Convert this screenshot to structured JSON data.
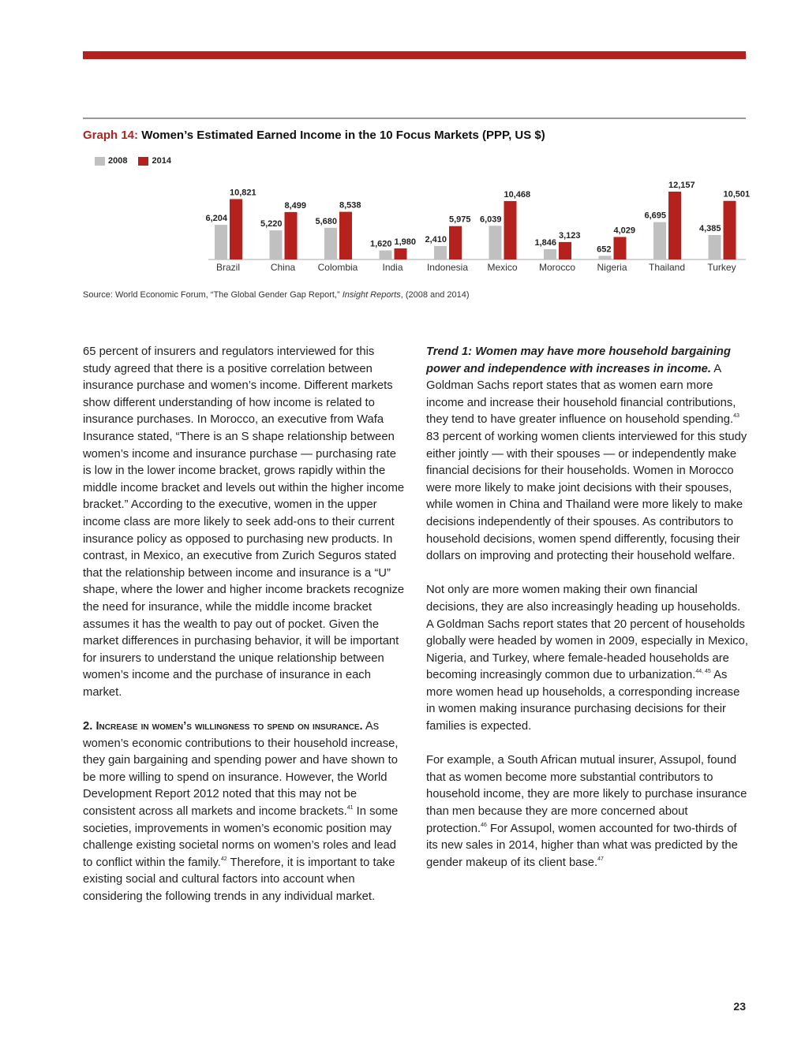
{
  "chart_data": {
    "type": "bar",
    "title_label": "Graph 14:",
    "title": "Women’s Estimated Earned Income in the 10 Focus Markets (PPP, US $)",
    "categories": [
      "Brazil",
      "China",
      "Colombia",
      "India",
      "Indonesia",
      "Mexico",
      "Morocco",
      "Nigeria",
      "Thailand",
      "Turkey"
    ],
    "series": [
      {
        "name": "2008",
        "color": "#c0c0c0",
        "values": [
          6204,
          5220,
          5680,
          1620,
          2410,
          6039,
          1846,
          652,
          6695,
          4385
        ],
        "labels": [
          "6,204",
          "5,220",
          "5,680",
          "1,620",
          "2,410",
          "6,039",
          "1,846",
          "652",
          "6,695",
          "4,385"
        ]
      },
      {
        "name": "2014",
        "color": "#b5211d",
        "values": [
          10821,
          8499,
          8538,
          1980,
          5975,
          10468,
          3123,
          4029,
          12157,
          10501
        ],
        "labels": [
          "10,821",
          "8,499",
          "8,538",
          "1,980",
          "5,975",
          "10,468",
          "3,123",
          "4,029",
          "12,157",
          "10,501"
        ]
      }
    ],
    "ylim": [
      0,
      12157
    ],
    "grid": false,
    "legend": "top-left"
  },
  "source": {
    "prefix": "Source: World Economic Forum, “The Global Gender Gap Report,” ",
    "italic": "Insight Reports",
    "suffix": ", (2008 and 2014)"
  },
  "left_column": {
    "p1": "65 percent of insurers and regulators interviewed for this study agreed that there is a positive correlation between insurance purchase and women’s income. Different markets show different understanding of how income is related to insurance purchases. In Morocco, an executive from Wafa Insurance stated, “There is an S shape relationship between women’s income and insurance purchase — purchasing rate is low in the lower income bracket, grows rapidly within the middle income bracket and levels out within the higher income bracket.” According to the executive, women in the upper income class are more likely to seek add-ons to their current insurance policy as opposed to purchasing new products. In contrast, in Mexico, an executive from Zurich Seguros stated that the relationship between income and insurance is a “U” shape, where the lower and higher income brackets recognize the need for insurance, while the middle income bracket assumes it has the wealth to pay out of pocket. Given the market differences in purchasing behavior, it will be important for insurers to understand the unique relationship between women’s income and the purchase of insurance in each market.",
    "p2_heading": "2. Increase in women’s willingness to spend on insurance.",
    "p2_a": " As women’s economic contributions to their household increase, they gain bargaining and spending power and have shown to be more willing to spend on insurance. However, the World Development Report 2012 noted that this may not be consistent across all markets and income brackets.",
    "p2_sup1": "41",
    "p2_b": " In some societies, improvements in women’s economic position may challenge existing societal norms on women’s roles and lead to conflict within the family.",
    "p2_sup2": "42",
    "p2_c": " Therefore, it is important to take existing social and cultural factors into account when considering the following trends in any individual market."
  },
  "right_column": {
    "p1_heading": "Trend 1: Women may have more household bargaining power and independence with increases in income.",
    "p1_a": " A Goldman Sachs report states that as women earn more income and increase their household financial contributions, they tend to have greater influence on household spending.",
    "p1_sup": "43",
    "p1_b": " 83 percent of working women clients interviewed for this study either jointly — with their spouses — or independently make financial decisions for their households. Women in Morocco were more likely to make joint decisions with their spouses, while women in China and Thailand were more likely to make decisions independently of their spouses. As contributors to household decisions, women spend differently, focusing their dollars on improving and protecting their household welfare.",
    "p2_a": "Not only are more women making their own financial decisions, they are also increasingly heading up households. A Goldman Sachs report states that 20 percent of households globally were headed by women in 2009, especially in Mexico, Nigeria, and Turkey, where female-headed households are becoming increasingly common due to urbanization.",
    "p2_sup": "44, 45",
    "p2_b": " As more women head up households, a corresponding increase in women making insurance purchasing decisions for their families is expected.",
    "p3_a": "For example, a South African mutual insurer, Assupol, found that as women become more substantial contributors to household income, they are more likely to purchase insurance than men because they are more concerned about protection.",
    "p3_sup1": "46",
    "p3_b": " For Assupol, women accounted for two-thirds of its new sales in 2014, higher than what was predicted by the gender makeup of its client base.",
    "p3_sup2": "47"
  },
  "page_number": "23"
}
